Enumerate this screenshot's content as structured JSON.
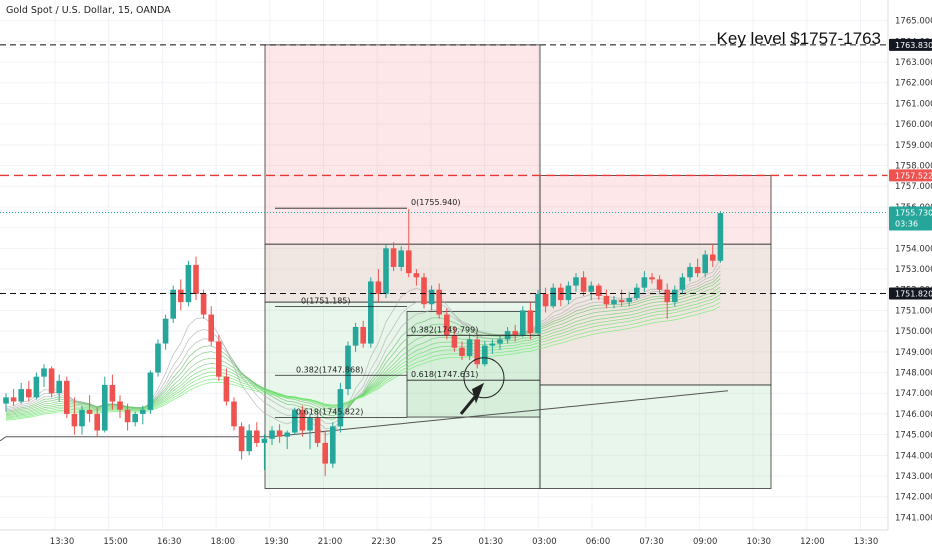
{
  "chart_data": {
    "type": "candlestick",
    "title": "Gold Spot / U.S. Dollar, 15, OANDA",
    "annotation": "Key level $1757-1763",
    "ylim": [
      1740.5,
      1765.9
    ],
    "y_ticks": [
      "1765.000",
      "1764.000",
      "1763.000",
      "1762.000",
      "1761.000",
      "1760.000",
      "1759.000",
      "1758.000",
      "1757.000",
      "1756.000",
      "1755.000",
      "1754.000",
      "1753.000",
      "1752.000",
      "1751.000",
      "1750.000",
      "1749.000",
      "1748.000",
      "1747.000",
      "1746.000",
      "1745.000",
      "1744.000",
      "1743.000",
      "1742.000",
      "1741.000"
    ],
    "x_ticks": [
      "13:30",
      "15:00",
      "16:30",
      "18:00",
      "19:30",
      "21:00",
      "22:30",
      "25",
      "01:30",
      "03:00",
      "06:00",
      "07:30",
      "09:00",
      "10:30",
      "12:00",
      "13:30"
    ],
    "price_badges": [
      {
        "label": "1763.830",
        "value": 1763.83,
        "style": "dark"
      },
      {
        "label": "1757.522",
        "value": 1757.522,
        "style": "red"
      },
      {
        "label": "1755.730",
        "sub": "03:36",
        "value": 1755.73,
        "style": "teal"
      },
      {
        "label": "1751.820",
        "value": 1751.82,
        "style": "dark"
      }
    ],
    "horizontal_lines": [
      {
        "value": 1763.83,
        "style": "dark-dash"
      },
      {
        "value": 1757.522,
        "style": "red-dash"
      },
      {
        "value": 1755.73,
        "style": "teal-dot"
      },
      {
        "value": 1751.82,
        "style": "dark-dash"
      }
    ],
    "fib_labels": [
      {
        "text": "0(1755.940)",
        "value": 1755.94
      },
      {
        "text": "0(1751.185)",
        "value": 1751.185
      },
      {
        "text": "0.382(1749.799)",
        "value": 1749.799
      },
      {
        "text": "0.382(1747.868)",
        "value": 1747.868
      },
      {
        "text": "0.618(1747.631)",
        "value": 1747.631
      },
      {
        "text": "0.618(1745.822)",
        "value": 1745.822
      }
    ],
    "zones": [
      {
        "kind": "red",
        "y_top": 1763.83,
        "y_bottom": 1754.2
      },
      {
        "kind": "brown",
        "y_top": 1754.2,
        "y_bottom": 1751.4
      },
      {
        "kind": "green",
        "y_top": 1751.4,
        "y_bottom": 1742.4
      },
      {
        "kind": "red",
        "y_top": 1757.52,
        "y_bottom": 1754.2
      },
      {
        "kind": "brown",
        "y_top": 1754.2,
        "y_bottom": 1747.4
      },
      {
        "kind": "green",
        "y_top": 1747.4,
        "y_bottom": 1742.4
      },
      {
        "kind": "green",
        "y_top": 1750.95,
        "y_bottom": 1745.85
      }
    ],
    "candles": [
      [
        1746.5,
        1747.0,
        1746.1,
        1746.8
      ],
      [
        1746.8,
        1747.2,
        1746.4,
        1746.6
      ],
      [
        1746.6,
        1747.5,
        1746.5,
        1747.2
      ],
      [
        1747.2,
        1747.6,
        1746.6,
        1746.8
      ],
      [
        1746.8,
        1748.0,
        1746.7,
        1747.8
      ],
      [
        1747.8,
        1748.4,
        1747.3,
        1748.2
      ],
      [
        1748.2,
        1748.3,
        1746.8,
        1747.0
      ],
      [
        1747.0,
        1747.9,
        1746.6,
        1747.6
      ],
      [
        1747.6,
        1747.8,
        1745.8,
        1746.0
      ],
      [
        1746.0,
        1746.8,
        1745.0,
        1745.4
      ],
      [
        1745.4,
        1746.4,
        1745.0,
        1746.2
      ],
      [
        1746.2,
        1746.9,
        1745.6,
        1746.0
      ],
      [
        1746.0,
        1746.3,
        1744.9,
        1745.2
      ],
      [
        1745.2,
        1747.8,
        1745.1,
        1747.4
      ],
      [
        1747.4,
        1747.9,
        1746.2,
        1746.6
      ],
      [
        1746.6,
        1746.9,
        1745.8,
        1746.2
      ],
      [
        1746.2,
        1746.5,
        1745.2,
        1745.6
      ],
      [
        1745.6,
        1746.1,
        1745.4,
        1746.0
      ],
      [
        1746.0,
        1746.4,
        1745.5,
        1746.2
      ],
      [
        1746.2,
        1748.1,
        1746.0,
        1748.0
      ],
      [
        1748.0,
        1749.6,
        1747.8,
        1749.4
      ],
      [
        1749.4,
        1750.8,
        1749.1,
        1750.6
      ],
      [
        1750.6,
        1752.2,
        1750.4,
        1752.0
      ],
      [
        1752.0,
        1752.5,
        1751.0,
        1751.4
      ],
      [
        1751.4,
        1753.4,
        1751.2,
        1753.2
      ],
      [
        1753.2,
        1753.6,
        1751.5,
        1751.8
      ],
      [
        1751.8,
        1752.0,
        1750.6,
        1750.8
      ],
      [
        1750.8,
        1751.2,
        1749.3,
        1749.5
      ],
      [
        1749.5,
        1749.8,
        1747.6,
        1747.8
      ],
      [
        1747.8,
        1748.2,
        1746.4,
        1746.6
      ],
      [
        1746.6,
        1746.8,
        1745.2,
        1745.4
      ],
      [
        1745.4,
        1745.6,
        1743.8,
        1744.2
      ],
      [
        1744.2,
        1745.5,
        1744.0,
        1745.2
      ],
      [
        1745.2,
        1745.6,
        1744.4,
        1744.6
      ],
      [
        1744.6,
        1745.0,
        1743.3,
        1744.8
      ],
      [
        1744.8,
        1745.4,
        1744.5,
        1745.2
      ],
      [
        1745.2,
        1745.5,
        1744.6,
        1744.9
      ],
      [
        1744.9,
        1745.2,
        1744.3,
        1745.1
      ],
      [
        1745.1,
        1746.3,
        1745.0,
        1746.2
      ],
      [
        1746.2,
        1746.4,
        1744.9,
        1745.2
      ],
      [
        1745.2,
        1746.0,
        1744.3,
        1745.8
      ],
      [
        1745.8,
        1746.1,
        1744.4,
        1744.6
      ],
      [
        1744.6,
        1745.2,
        1743.0,
        1743.6
      ],
      [
        1743.6,
        1745.6,
        1743.4,
        1745.4
      ],
      [
        1745.4,
        1747.5,
        1745.1,
        1747.2
      ],
      [
        1747.2,
        1749.5,
        1746.9,
        1749.3
      ],
      [
        1749.3,
        1750.4,
        1749.0,
        1750.2
      ],
      [
        1750.2,
        1750.5,
        1749.2,
        1749.4
      ],
      [
        1749.4,
        1752.6,
        1749.2,
        1752.4
      ],
      [
        1752.4,
        1753.0,
        1751.4,
        1751.8
      ],
      [
        1751.8,
        1754.2,
        1751.6,
        1754.0
      ],
      [
        1754.0,
        1754.3,
        1752.9,
        1753.1
      ],
      [
        1753.1,
        1754.1,
        1752.9,
        1753.9
      ],
      [
        1753.9,
        1755.9,
        1752.6,
        1752.8
      ],
      [
        1752.8,
        1753.0,
        1752.2,
        1752.6
      ],
      [
        1752.6,
        1752.8,
        1751.1,
        1751.3
      ],
      [
        1751.3,
        1752.2,
        1751.0,
        1752.0
      ],
      [
        1752.0,
        1752.3,
        1750.6,
        1750.8
      ],
      [
        1750.8,
        1751.1,
        1749.6,
        1749.8
      ],
      [
        1749.8,
        1750.2,
        1749.0,
        1749.2
      ],
      [
        1749.2,
        1749.5,
        1748.6,
        1748.8
      ],
      [
        1748.8,
        1749.9,
        1748.6,
        1749.6
      ],
      [
        1749.6,
        1749.9,
        1748.2,
        1748.4
      ],
      [
        1748.4,
        1749.5,
        1748.3,
        1749.3
      ],
      [
        1749.3,
        1749.6,
        1748.9,
        1749.4
      ],
      [
        1749.4,
        1749.8,
        1749.1,
        1749.6
      ],
      [
        1749.6,
        1750.2,
        1749.4,
        1750.0
      ],
      [
        1750.0,
        1750.3,
        1749.5,
        1749.8
      ],
      [
        1749.8,
        1751.2,
        1749.7,
        1751.0
      ],
      [
        1751.0,
        1751.4,
        1749.6,
        1749.9
      ],
      [
        1749.9,
        1752.0,
        1749.8,
        1751.8
      ],
      [
        1751.8,
        1752.1,
        1750.9,
        1751.2
      ],
      [
        1751.2,
        1752.3,
        1751.1,
        1752.1
      ],
      [
        1752.1,
        1752.3,
        1751.2,
        1751.5
      ],
      [
        1751.5,
        1752.4,
        1751.3,
        1752.2
      ],
      [
        1752.2,
        1752.8,
        1751.9,
        1752.6
      ],
      [
        1752.6,
        1752.9,
        1751.7,
        1751.9
      ],
      [
        1751.9,
        1752.4,
        1751.5,
        1752.2
      ],
      [
        1752.2,
        1752.3,
        1751.5,
        1751.7
      ],
      [
        1751.7,
        1752.0,
        1751.1,
        1751.3
      ],
      [
        1751.3,
        1751.7,
        1751.1,
        1751.5
      ],
      [
        1751.5,
        1752.0,
        1751.2,
        1751.4
      ],
      [
        1751.4,
        1751.9,
        1751.2,
        1751.6
      ],
      [
        1751.6,
        1752.3,
        1751.5,
        1752.1
      ],
      [
        1752.1,
        1752.9,
        1751.9,
        1752.6
      ],
      [
        1752.6,
        1752.8,
        1752.3,
        1752.5
      ],
      [
        1752.5,
        1752.7,
        1751.8,
        1752.0
      ],
      [
        1752.0,
        1752.3,
        1750.6,
        1751.4
      ],
      [
        1751.4,
        1752.2,
        1751.2,
        1752.0
      ],
      [
        1752.0,
        1752.8,
        1751.8,
        1752.6
      ],
      [
        1752.6,
        1753.3,
        1752.4,
        1753.1
      ],
      [
        1753.1,
        1753.5,
        1752.6,
        1752.8
      ],
      [
        1752.8,
        1753.9,
        1752.6,
        1753.7
      ],
      [
        1753.7,
        1754.2,
        1753.1,
        1753.4
      ],
      [
        1753.4,
        1755.8,
        1753.3,
        1755.7
      ]
    ]
  }
}
